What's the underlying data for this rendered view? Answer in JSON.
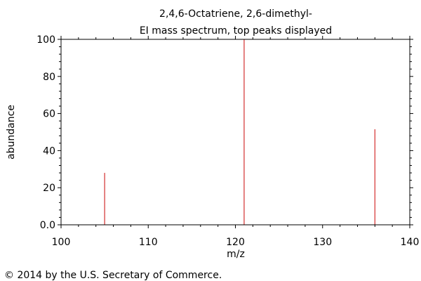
{
  "chart_data": {
    "type": "bar",
    "title": "2,4,6-Octatriene, 2,6-dimethyl-",
    "subtitle": "EI mass spectrum, top peaks displayed",
    "xlabel": "m/z",
    "ylabel": "abundance",
    "xlim": [
      100,
      140
    ],
    "ylim": [
      0,
      100
    ],
    "x_ticks": [
      "100",
      "110",
      "120",
      "130",
      "140"
    ],
    "y_ticks": [
      "0.0",
      "20",
      "40",
      "60",
      "80",
      "100"
    ],
    "peaks": [
      {
        "mz": 105,
        "abundance": 28
      },
      {
        "mz": 121,
        "abundance": 100
      },
      {
        "mz": 136,
        "abundance": 51.5
      }
    ],
    "grid": false,
    "bar_color": "#d32f2f"
  },
  "footer": {
    "copyright": "© 2014 by the U.S. Secretary of Commerce."
  }
}
